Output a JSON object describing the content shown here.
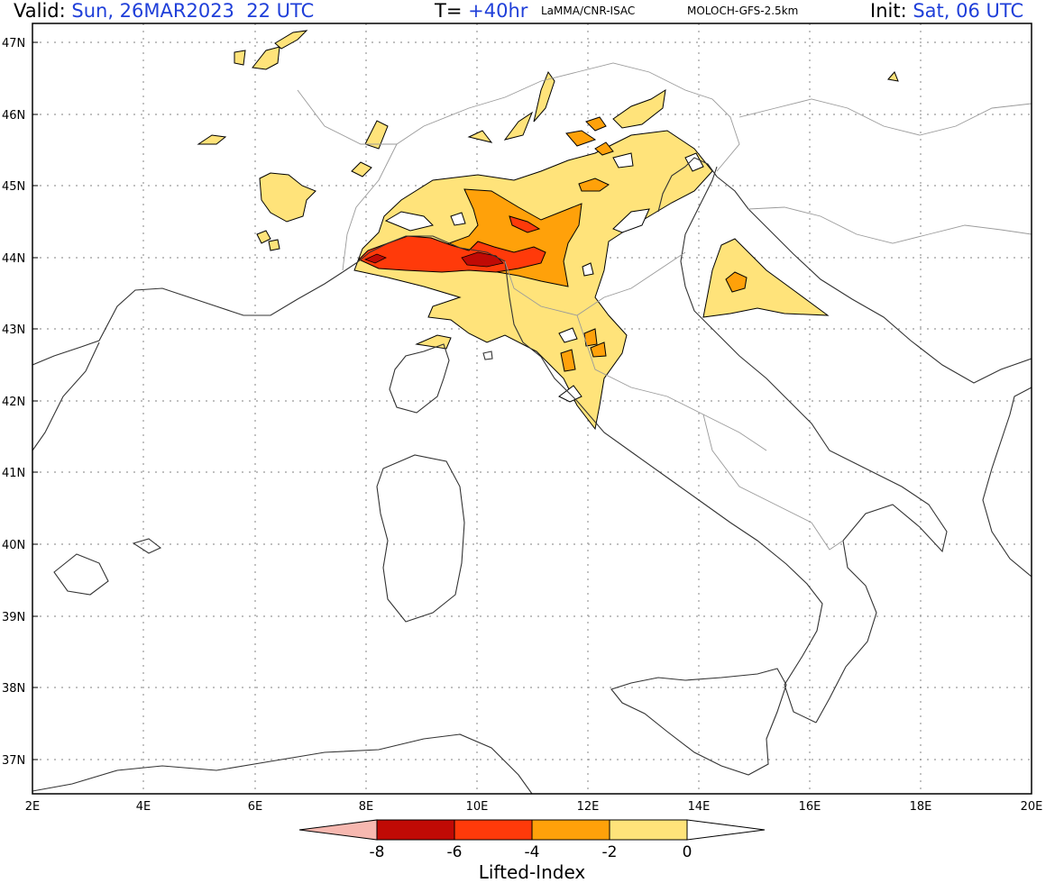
{
  "header": {
    "valid_label": "Valid:",
    "valid_value": "Sun, 26MAR2023  22 UTC",
    "t_label": "T=",
    "t_value": "+40hr",
    "source": "LaMMA/CNR-ISAC",
    "model": "MOLOCH-GFS-2.5km",
    "init_label": "Init:",
    "init_value": "Sat, 06 UTC"
  },
  "map": {
    "lat_labels": [
      "47N",
      "46N",
      "45N",
      "44N",
      "43N",
      "42N",
      "41N",
      "40N",
      "39N",
      "38N",
      "37N"
    ],
    "lon_labels": [
      "2E",
      "4E",
      "6E",
      "8E",
      "10E",
      "12E",
      "14E",
      "16E",
      "18E",
      "20E"
    ],
    "colors": {
      "land_line": "#333333",
      "border_line": "#9a9a9a",
      "grid": "#9a9a9a"
    }
  },
  "colorbar": {
    "title": "Lifted-Index",
    "ticks": [
      "-8",
      "-6",
      "-4",
      "-2",
      "0"
    ],
    "bins": [
      {
        "range": "< -8",
        "color": "#f7b8b0"
      },
      {
        "range": "-8 to -6",
        "color": "#c00a05"
      },
      {
        "range": "-6 to -4",
        "color": "#ff3a0a"
      },
      {
        "range": "-4 to -2",
        "color": "#ffa10a"
      },
      {
        "range": "-2 to 0",
        "color": "#ffe37a"
      },
      {
        "range": "> 0",
        "color": "#ffffff"
      }
    ]
  }
}
